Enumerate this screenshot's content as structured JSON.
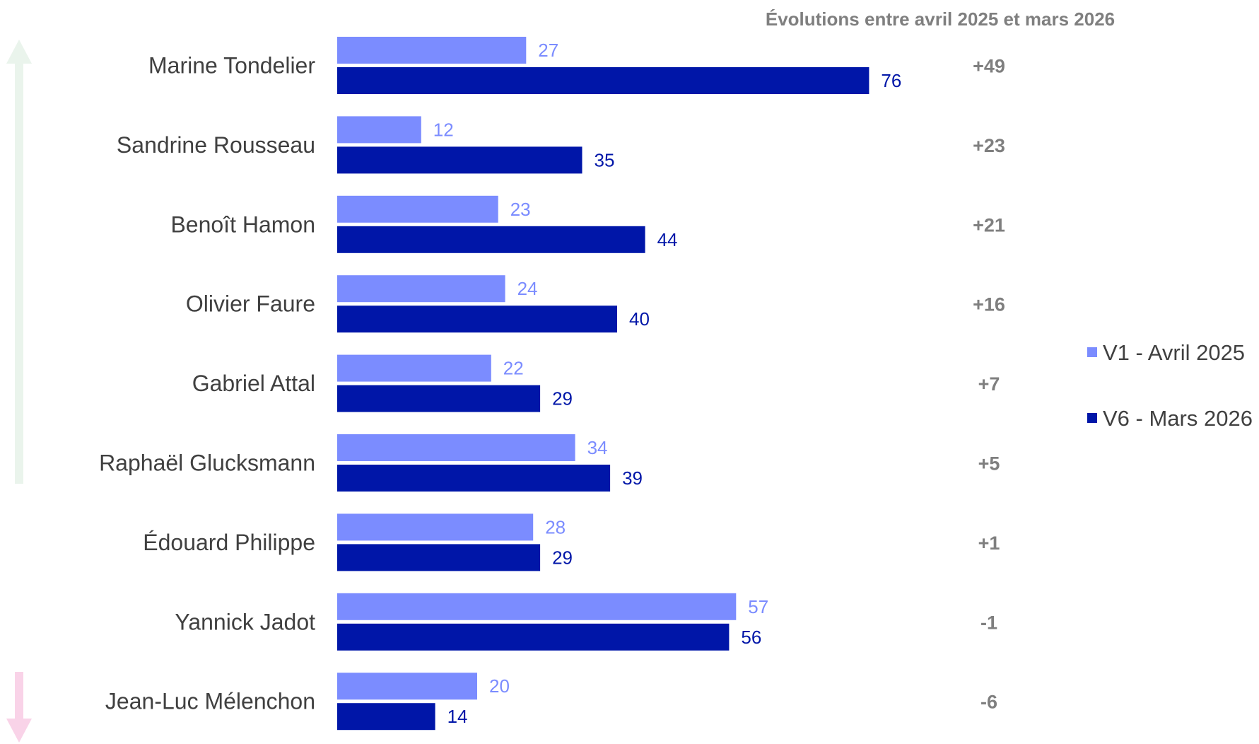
{
  "chart_data": {
    "type": "bar",
    "orientation": "horizontal",
    "categories": [
      "Marine Tondelier",
      "Sandrine Rousseau",
      "Benoît Hamon",
      "Olivier Faure",
      "Gabriel Attal",
      "Raphaël Glucksmann",
      "Édouard Philippe",
      "Yannick Jadot",
      "Jean-Luc Mélenchon"
    ],
    "series": [
      {
        "name": "V1 - Avril 2025",
        "color": "#7b8cff",
        "values": [
          27,
          12,
          23,
          24,
          22,
          34,
          28,
          57,
          20
        ]
      },
      {
        "name": "V6 - Mars 2026",
        "color": "#0016a8",
        "values": [
          76,
          35,
          44,
          40,
          29,
          39,
          29,
          56,
          14
        ]
      }
    ],
    "evolutions_title": "Évolutions entre avril 2025 et mars 2026",
    "evolutions": [
      "+49",
      "+23",
      "+21",
      "+16",
      "+7",
      "+5",
      "+1",
      "-1",
      "-6"
    ],
    "legend_position": "right",
    "grid": false,
    "xlim": [
      0,
      80
    ],
    "arrows": [
      {
        "name": "up-arrow",
        "color": "#eaf4ec"
      },
      {
        "name": "down-arrow",
        "color": "#f9d3e8"
      }
    ]
  }
}
